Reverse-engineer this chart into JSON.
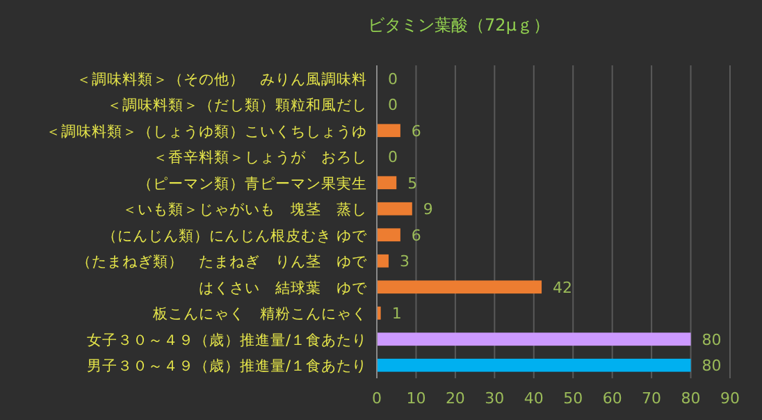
{
  "chart_data": {
    "type": "bar",
    "orientation": "horizontal",
    "title": "ビタミン葉酸（72μｇ）",
    "categories": [
      "＜調味料類＞（その他）　みりん風調味料",
      "＜調味料類＞（だし類）顆粒和風だし",
      "＜調味料類＞（しょうゆ類）こいくちしょうゆ",
      "＜香辛料類＞しょうが　おろし",
      "（ピーマン類）青ピーマン果実生",
      "＜いも類＞じゃがいも　塊茎　蒸し",
      "（にんじん類）にんじん根皮むき ゆで",
      "（たまねぎ類）　たまねぎ　りん茎　ゆで",
      "はくさい　結球葉　ゆで",
      "板こんにゃく　精粉こんにゃく",
      "女子３０～４９（歳）推進量/１食あたり",
      "男子３０～４９（歳）推進量/１食あたり"
    ],
    "values": [
      0,
      0,
      6,
      0,
      5,
      9,
      6,
      3,
      42,
      1,
      80,
      80
    ],
    "colors": [
      "#ed7d31",
      "#ed7d31",
      "#ed7d31",
      "#ed7d31",
      "#ed7d31",
      "#ed7d31",
      "#ed7d31",
      "#ed7d31",
      "#ed7d31",
      "#ed7d31",
      "#cc99ff",
      "#00b0f0"
    ],
    "xlim": [
      0,
      90
    ],
    "xticks": [
      0,
      10,
      20,
      30,
      40,
      50,
      60,
      70,
      80,
      90
    ],
    "grid": "x",
    "data_labels": true
  }
}
